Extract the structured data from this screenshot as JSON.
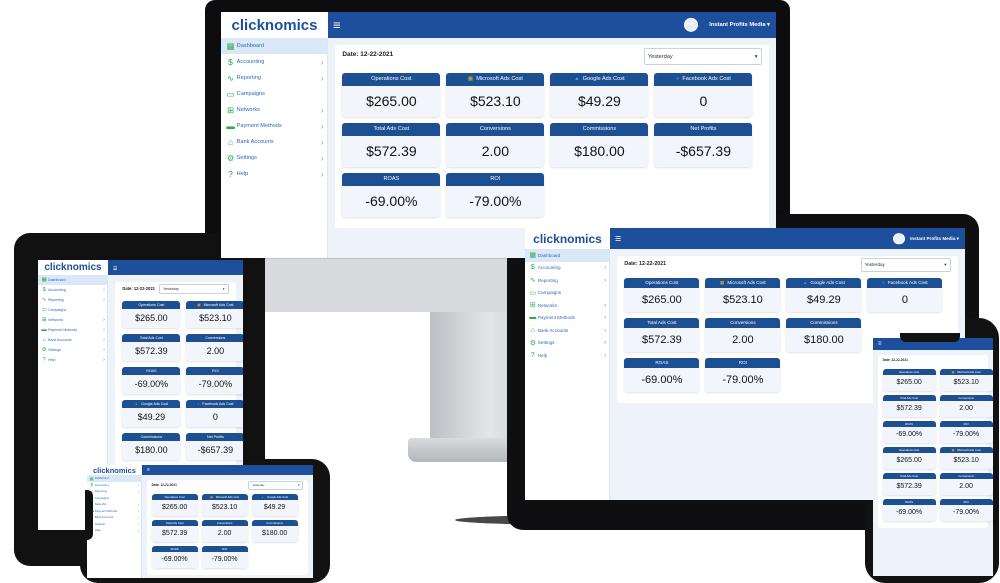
{
  "app": {
    "logo": "clicknomics",
    "account": "Instant Profits Media ▾",
    "date_label": "Date: 12-22-2021",
    "range_selected": "Yesterday",
    "range_short": "Yesterday",
    "colors": {
      "primary": "#1e4f9c",
      "card_header": "#1d4f93",
      "nav_text": "#2a6bc0",
      "nav_icon": "#2bab4f"
    }
  },
  "nav": [
    {
      "label": "Dashboard",
      "icon": "dashboard-icon",
      "glyph": "▦",
      "chevron": ""
    },
    {
      "label": "Accounting",
      "icon": "dollar-icon",
      "glyph": "$",
      "chevron": "›"
    },
    {
      "label": "Reporting",
      "icon": "trend-icon",
      "glyph": "∿",
      "chevron": "›"
    },
    {
      "label": "Campaigns",
      "icon": "monitor-icon",
      "glyph": "▭",
      "chevron": ""
    },
    {
      "label": "Networks",
      "icon": "network-icon",
      "glyph": "⊞",
      "chevron": "›"
    },
    {
      "label": "Payment Methods",
      "icon": "card-icon",
      "glyph": "▬",
      "chevron": "›"
    },
    {
      "label": "Bank Accounts",
      "icon": "bank-icon",
      "glyph": "⌂",
      "chevron": "›"
    },
    {
      "label": "Settings",
      "icon": "gear-icon",
      "glyph": "⚙",
      "chevron": "›"
    },
    {
      "label": "Help",
      "icon": "help-icon",
      "glyph": "?",
      "chevron": "›"
    }
  ],
  "metrics": {
    "ops": {
      "label": "Operations Cost",
      "value": "$265.00",
      "icon": ""
    },
    "ms": {
      "label": "Microsoft Ads Cost",
      "value": "$523.10",
      "icon": "microsoft-icon"
    },
    "gg": {
      "label": "Google Ads Cost",
      "value": "$49.29",
      "icon": "google-ads-icon"
    },
    "fb": {
      "label": "Facebook Ads Cost",
      "value": "0",
      "icon": "facebook-icon"
    },
    "tot": {
      "label": "Total Ads Cost",
      "value": "$572.39",
      "icon": ""
    },
    "conv": {
      "label": "Conversions",
      "value": "2.00",
      "icon": ""
    },
    "comm": {
      "label": "Commissions",
      "value": "$180.00",
      "icon": ""
    },
    "net": {
      "label": "Net Profits",
      "value": "-$657.39",
      "icon": ""
    },
    "roas": {
      "label": "ROAS",
      "value": "-69.00%",
      "icon": ""
    },
    "roi": {
      "label": "ROI",
      "value": "-79.00%",
      "icon": ""
    }
  }
}
